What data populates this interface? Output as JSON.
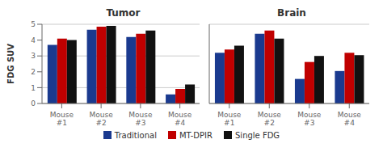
{
  "chart_data": [
    {
      "type": "bar",
      "title": "Tumor",
      "categories": [
        "Mouse\n#1",
        "Mouse\n#2",
        "Mouse\n#3",
        "Mouse\n#4"
      ],
      "series": [
        {
          "name": "Traditional",
          "color": "#1a3a8f",
          "values": [
            3.7,
            4.65,
            4.2,
            0.58
          ]
        },
        {
          "name": "MT-DPIR",
          "color": "#c00000",
          "values": [
            4.1,
            4.85,
            4.4,
            0.92
          ]
        },
        {
          "name": "Single FDG",
          "color": "#111111",
          "values": [
            4.0,
            4.9,
            4.6,
            1.2
          ]
        }
      ],
      "y_label": "FDG SUV",
      "ylim": [
        0,
        5
      ],
      "yticks": [
        0,
        1,
        2,
        3,
        4,
        5
      ],
      "grid": true,
      "legend": "bottom"
    },
    {
      "type": "bar",
      "title": "Brain",
      "categories": [
        "Mouse\n#1",
        "Mouse\n#2",
        "Mouse\n#3",
        "Mouse\n#4"
      ],
      "series": [
        {
          "name": "Traditional",
          "color": "#1a3a8f",
          "values": [
            3.2,
            4.4,
            1.55,
            2.05
          ]
        },
        {
          "name": "MT-DPIR",
          "color": "#c00000",
          "values": [
            3.4,
            4.6,
            2.62,
            3.2
          ]
        },
        {
          "name": "Single FDG",
          "color": "#111111",
          "values": [
            3.65,
            4.1,
            3.0,
            3.05
          ]
        }
      ],
      "ylim": [
        0,
        5
      ],
      "yticks": [
        0,
        1,
        2,
        3,
        4,
        5
      ],
      "grid": true,
      "tick_labels": "x"
    }
  ]
}
